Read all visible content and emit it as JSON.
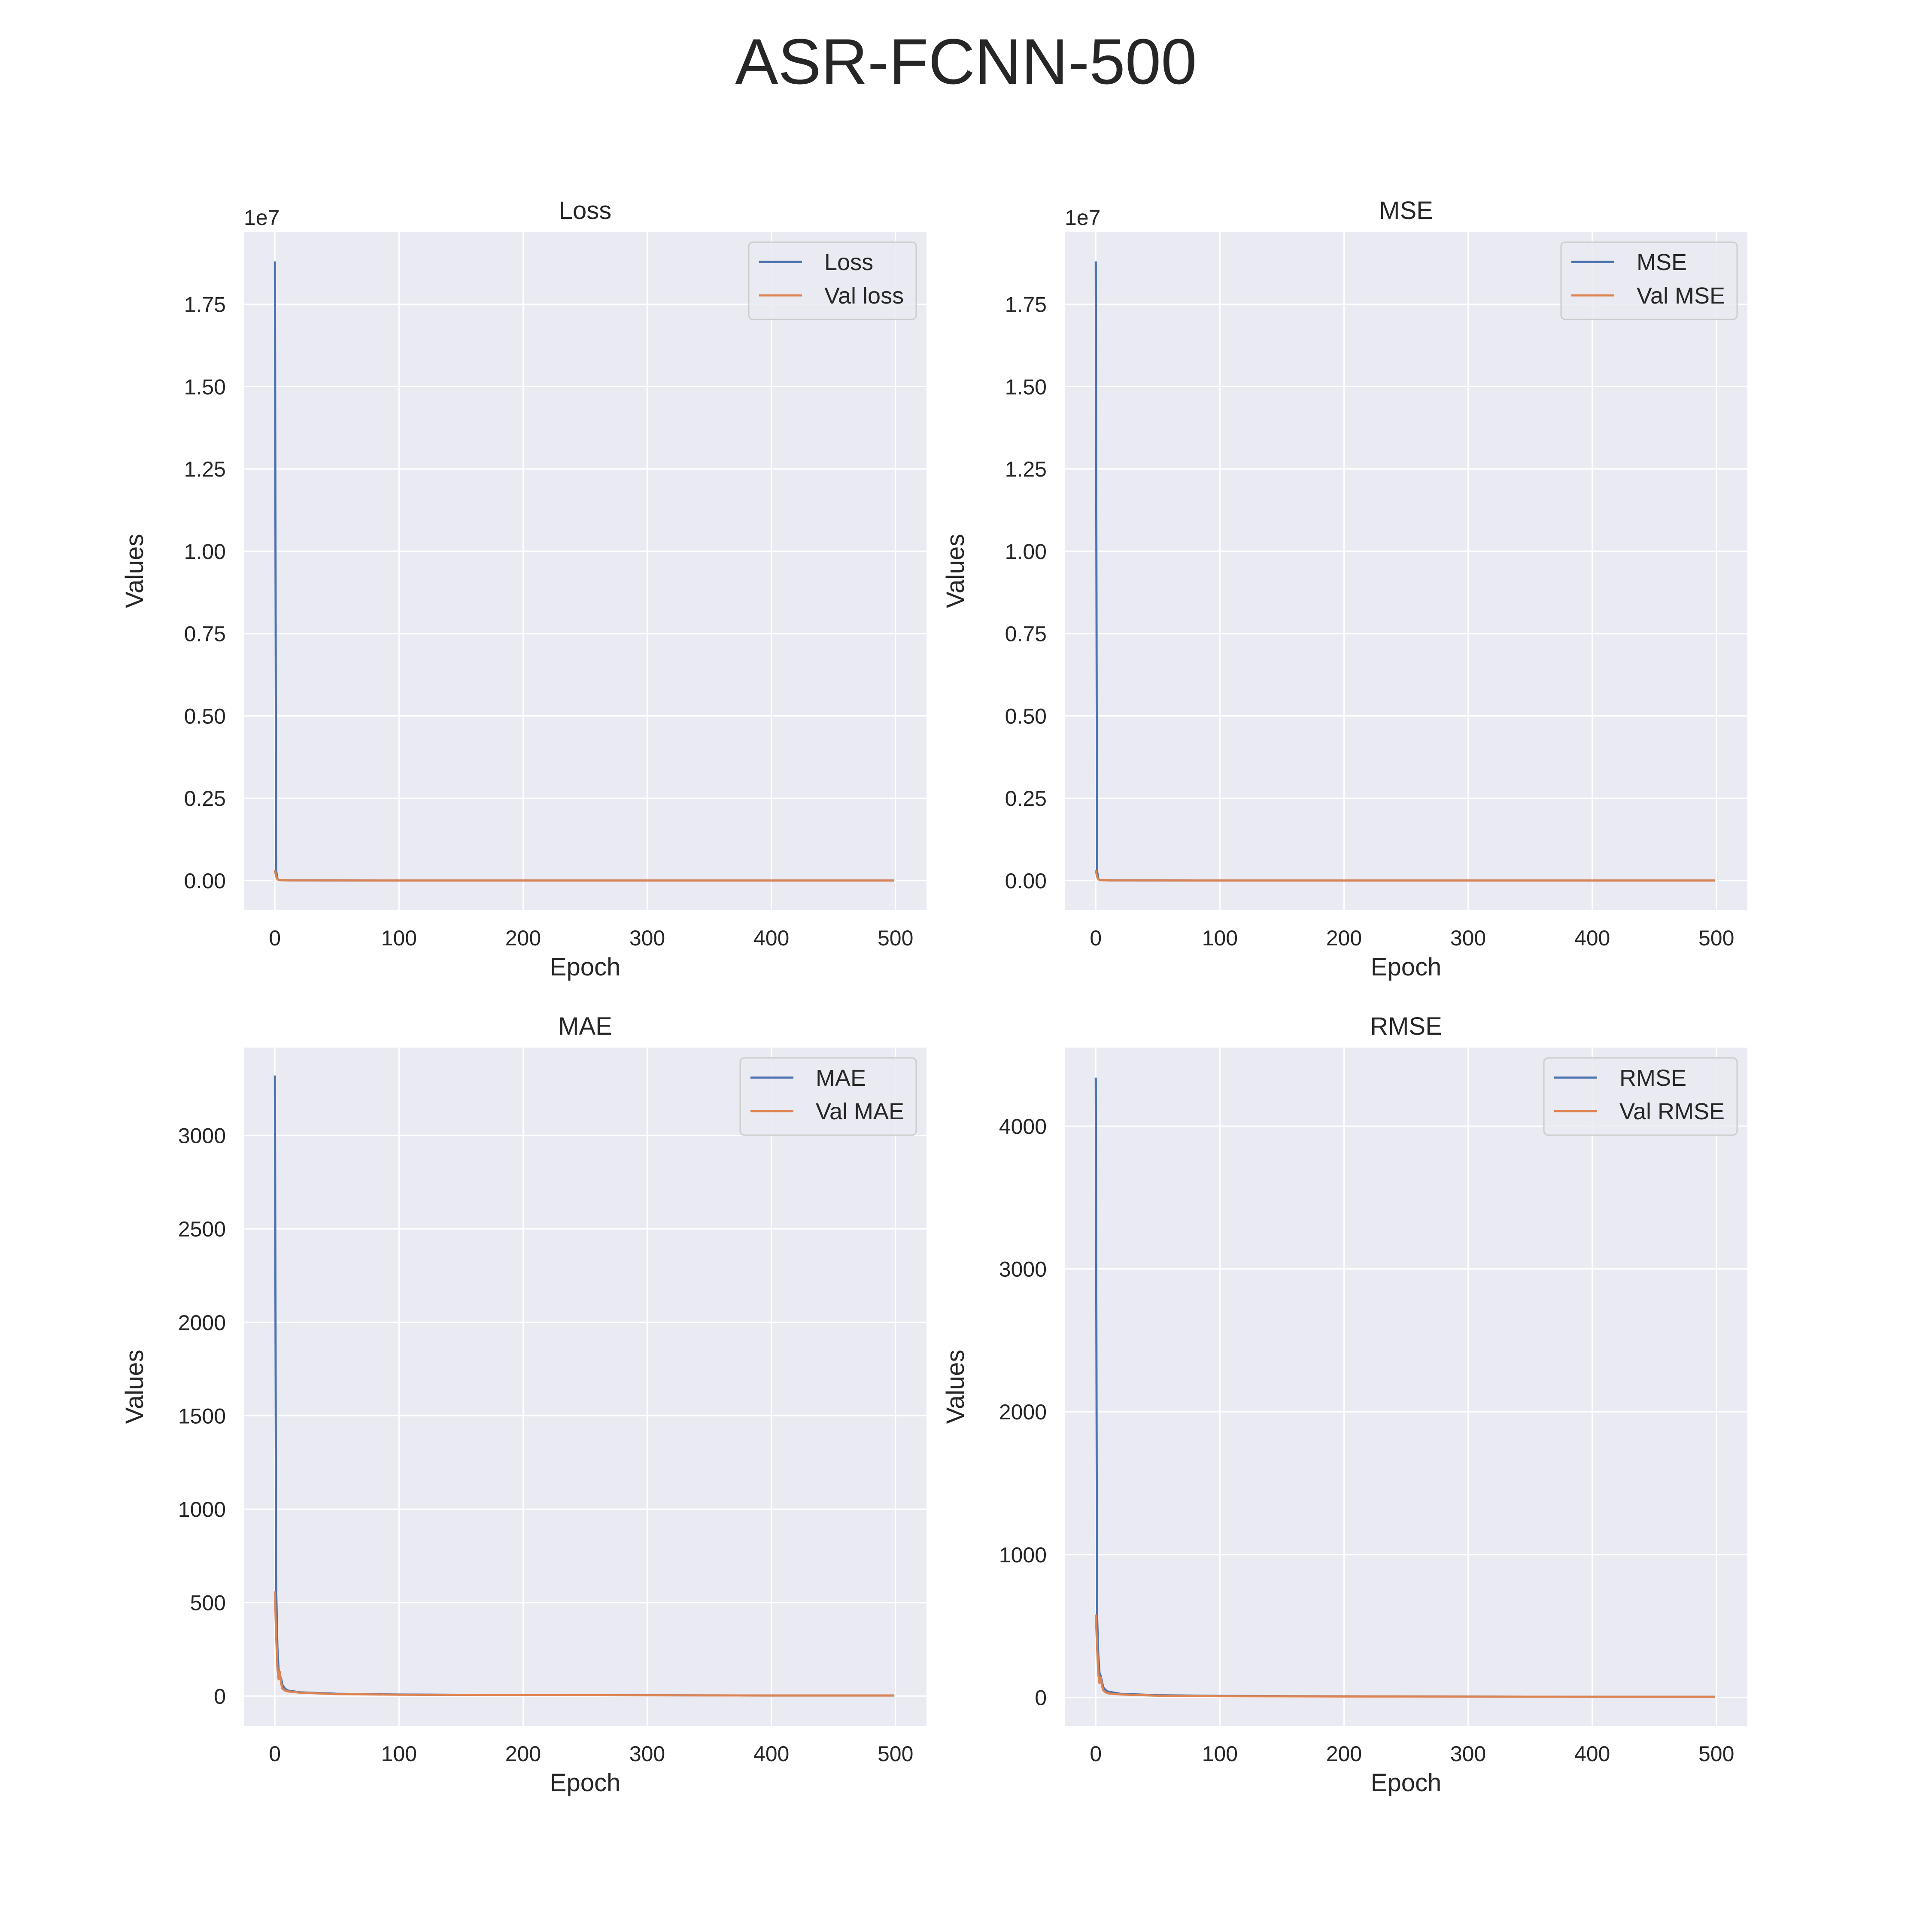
{
  "suptitle": "ASR-FCNN-500",
  "colors": {
    "train": "#4c72b0",
    "val": "#dd8452",
    "axes_bg": "#eaeaf2",
    "grid": "#ffffff"
  },
  "chart_data": [
    {
      "type": "line",
      "title": "Loss",
      "xlabel": "Epoch",
      "ylabel": "Values",
      "offset_text": "1e7",
      "xlim": [
        -25,
        525
      ],
      "ylim": [
        -0.09,
        1.97
      ],
      "xticks": [
        0,
        100,
        200,
        300,
        400,
        500
      ],
      "xtick_labels": [
        "0",
        "100",
        "200",
        "300",
        "400",
        "500"
      ],
      "yticks": [
        0,
        0.25,
        0.5,
        0.75,
        1.0,
        1.25,
        1.5,
        1.75
      ],
      "ytick_labels": [
        "0.00",
        "0.25",
        "0.50",
        "0.75",
        "1.00",
        "1.25",
        "1.50",
        "1.75"
      ],
      "grid": true,
      "legend_position": "top-right",
      "series": [
        {
          "name": "Loss",
          "color_key": "train",
          "x": [
            0,
            1,
            2,
            3,
            5,
            10,
            50,
            100,
            200,
            300,
            400,
            499
          ],
          "y": [
            1.88,
            0.03,
            0.006,
            0.002,
            0.001,
            0.0005,
            0.0002,
            0.0001,
            0.0001,
            0.0001,
            0.0001,
            0.0001
          ]
        },
        {
          "name": "Val loss",
          "color_key": "val",
          "x": [
            0,
            1,
            2,
            3,
            5,
            10,
            50,
            100,
            200,
            300,
            400,
            499
          ],
          "y": [
            0.032,
            0.012,
            0.004,
            0.002,
            0.001,
            0.0005,
            0.0002,
            0.0001,
            0.0001,
            0.0001,
            0.0001,
            0.0001
          ]
        }
      ]
    },
    {
      "type": "line",
      "title": "MSE",
      "xlabel": "Epoch",
      "ylabel": "Values",
      "offset_text": "1e7",
      "xlim": [
        -25,
        525
      ],
      "ylim": [
        -0.09,
        1.97
      ],
      "xticks": [
        0,
        100,
        200,
        300,
        400,
        500
      ],
      "xtick_labels": [
        "0",
        "100",
        "200",
        "300",
        "400",
        "500"
      ],
      "yticks": [
        0,
        0.25,
        0.5,
        0.75,
        1.0,
        1.25,
        1.5,
        1.75
      ],
      "ytick_labels": [
        "0.00",
        "0.25",
        "0.50",
        "0.75",
        "1.00",
        "1.25",
        "1.50",
        "1.75"
      ],
      "grid": true,
      "legend_position": "top-right",
      "series": [
        {
          "name": "MSE",
          "color_key": "train",
          "x": [
            0,
            1,
            2,
            3,
            5,
            10,
            50,
            100,
            200,
            300,
            400,
            499
          ],
          "y": [
            1.88,
            0.03,
            0.006,
            0.002,
            0.001,
            0.0005,
            0.0002,
            0.0001,
            0.0001,
            0.0001,
            0.0001,
            0.0001
          ]
        },
        {
          "name": "Val MSE",
          "color_key": "val",
          "x": [
            0,
            1,
            2,
            3,
            5,
            10,
            50,
            100,
            200,
            300,
            400,
            499
          ],
          "y": [
            0.032,
            0.012,
            0.004,
            0.002,
            0.001,
            0.0005,
            0.0002,
            0.0001,
            0.0001,
            0.0001,
            0.0001,
            0.0001
          ]
        }
      ]
    },
    {
      "type": "line",
      "title": "MAE",
      "xlabel": "Epoch",
      "ylabel": "Values",
      "offset_text": "",
      "xlim": [
        -25,
        525
      ],
      "ylim": [
        -160,
        3470
      ],
      "xticks": [
        0,
        100,
        200,
        300,
        400,
        500
      ],
      "xtick_labels": [
        "0",
        "100",
        "200",
        "300",
        "400",
        "500"
      ],
      "yticks": [
        0,
        500,
        1000,
        1500,
        2000,
        2500,
        3000
      ],
      "ytick_labels": [
        "0",
        "500",
        "1000",
        "1500",
        "2000",
        "2500",
        "3000"
      ],
      "grid": true,
      "legend_position": "top-right",
      "series": [
        {
          "name": "MAE",
          "color_key": "train",
          "x": [
            0,
            1,
            2,
            3,
            4,
            5,
            6,
            8,
            10,
            20,
            50,
            100,
            200,
            300,
            400,
            499
          ],
          "y": [
            3320,
            580,
            260,
            140,
            110,
            95,
            60,
            40,
            30,
            20,
            12,
            8,
            5,
            4,
            3,
            3
          ]
        },
        {
          "name": "Val MAE",
          "color_key": "val",
          "x": [
            0,
            1,
            2,
            3,
            4,
            5,
            6,
            8,
            10,
            20,
            50,
            100,
            200,
            300,
            400,
            499
          ],
          "y": [
            560,
            320,
            150,
            90,
            130,
            70,
            40,
            30,
            25,
            18,
            10,
            7,
            5,
            4,
            3,
            3
          ]
        }
      ]
    },
    {
      "type": "line",
      "title": "RMSE",
      "xlabel": "Epoch",
      "ylabel": "Values",
      "offset_text": "",
      "xlim": [
        -25,
        525
      ],
      "ylim": [
        -200,
        4550
      ],
      "xticks": [
        0,
        100,
        200,
        300,
        400,
        500
      ],
      "xtick_labels": [
        "0",
        "100",
        "200",
        "300",
        "400",
        "500"
      ],
      "yticks": [
        0,
        1000,
        2000,
        3000,
        4000
      ],
      "ytick_labels": [
        "0",
        "1000",
        "2000",
        "3000",
        "4000"
      ],
      "grid": true,
      "legend_position": "top-right",
      "series": [
        {
          "name": "RMSE",
          "color_key": "train",
          "x": [
            0,
            1,
            2,
            3,
            4,
            5,
            6,
            8,
            10,
            20,
            50,
            100,
            200,
            300,
            400,
            499
          ],
          "y": [
            4340,
            580,
            300,
            170,
            150,
            110,
            70,
            50,
            40,
            25,
            15,
            10,
            7,
            5,
            4,
            4
          ]
        },
        {
          "name": "Val RMSE",
          "color_key": "val",
          "x": [
            0,
            1,
            2,
            3,
            4,
            5,
            6,
            8,
            10,
            20,
            50,
            100,
            200,
            300,
            400,
            499
          ],
          "y": [
            580,
            360,
            170,
            100,
            140,
            80,
            50,
            35,
            28,
            20,
            12,
            8,
            6,
            5,
            4,
            4
          ]
        }
      ]
    }
  ]
}
